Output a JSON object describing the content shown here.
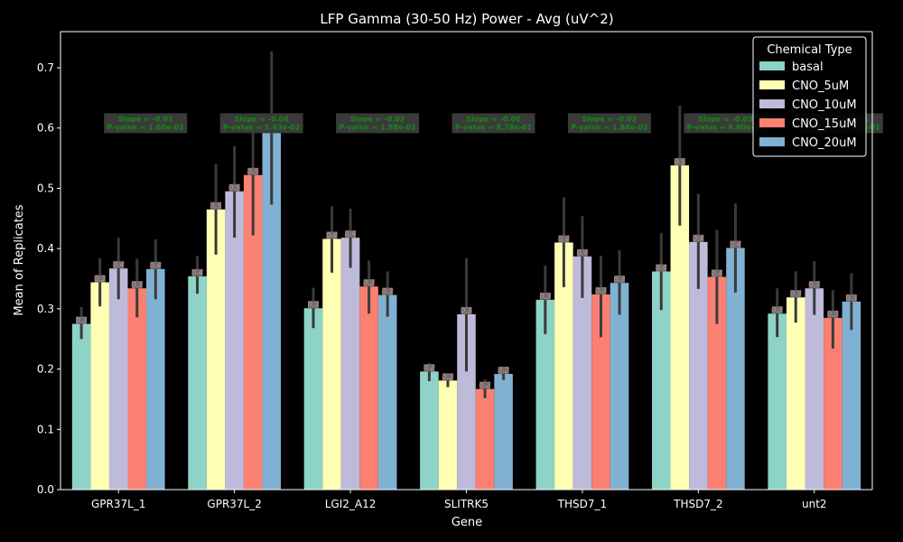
{
  "colors": {
    "background": "#000000",
    "axis": "#ffffff",
    "errorbar": "#3a3a3a",
    "stat_box": "#3a3a3a",
    "stat_text": "#138a13",
    "bar_label_bg": "#6e6e6e",
    "bar_label_text": "#d48a8a",
    "legend_bg": "#000000",
    "legend_border": "#ffffff"
  },
  "chart_data": {
    "type": "bar",
    "title": "LFP Gamma (30-50 Hz) Power - Avg (uV^2)",
    "xlabel": "Gene",
    "ylabel": "Mean of Replicates",
    "ylim": [
      0,
      0.76
    ],
    "yticks": [
      0.0,
      0.1,
      0.2,
      0.3,
      0.4,
      0.5,
      0.6,
      0.7
    ],
    "ytick_labels": [
      "0.0",
      "0.1",
      "0.2",
      "0.3",
      "0.4",
      "0.5",
      "0.6",
      "0.7"
    ],
    "grid": false,
    "legend_placement": "top-right",
    "legend_title": "Chemical Type",
    "categories": [
      "GPR37L_1",
      "GPR37L_2",
      "LGI2_A12",
      "SLITRK5",
      "THSD7_1",
      "THSD7_2",
      "unt2"
    ],
    "series": [
      {
        "name": "basal",
        "color": "#8dd3c7",
        "values": [
          0.275,
          0.354,
          0.301,
          0.196,
          0.315,
          0.362,
          0.292
        ],
        "err_low": [
          0.25,
          0.325,
          0.268,
          0.18,
          0.258,
          0.298,
          0.253
        ],
        "err_high": [
          0.303,
          0.388,
          0.335,
          0.21,
          0.372,
          0.426,
          0.334
        ],
        "labels": [
          "0.3",
          "0.4",
          "0.3",
          "0.2",
          "0.3",
          "0.4",
          "0.3"
        ]
      },
      {
        "name": "CNO_5uM",
        "color": "#ffffb3",
        "values": [
          0.344,
          0.465,
          0.416,
          0.181,
          0.41,
          0.538,
          0.319
        ],
        "err_low": [
          0.304,
          0.39,
          0.36,
          0.17,
          0.336,
          0.438,
          0.277
        ],
        "err_high": [
          0.384,
          0.54,
          0.47,
          0.19,
          0.485,
          0.637,
          0.362
        ],
        "labels": [
          "0.3",
          "0.5",
          "0.4",
          "0.2",
          "0.4",
          "0.5",
          "0.3"
        ]
      },
      {
        "name": "CNO_10uM",
        "color": "#bebada",
        "values": [
          0.367,
          0.495,
          0.418,
          0.291,
          0.387,
          0.411,
          0.334
        ],
        "err_low": [
          0.316,
          0.418,
          0.368,
          0.196,
          0.318,
          0.333,
          0.29
        ],
        "err_high": [
          0.418,
          0.57,
          0.466,
          0.384,
          0.454,
          0.491,
          0.379
        ],
        "labels": [
          "0.4",
          "0.5",
          "0.4",
          "0.3",
          "0.4",
          "0.4",
          "0.3"
        ]
      },
      {
        "name": "CNO_15uM",
        "color": "#fb8072",
        "values": [
          0.334,
          0.522,
          0.337,
          0.167,
          0.324,
          0.353,
          0.285
        ],
        "err_low": [
          0.286,
          0.422,
          0.292,
          0.152,
          0.253,
          0.275,
          0.234
        ],
        "err_high": [
          0.383,
          0.623,
          0.38,
          0.183,
          0.388,
          0.431,
          0.331
        ],
        "labels": [
          "0.3",
          "0.5",
          "0.3",
          "0.2",
          "0.3",
          "0.4",
          "0.3"
        ]
      },
      {
        "name": "CNO_20uM",
        "color": "#80b1d3",
        "values": [
          0.366,
          0.6,
          0.323,
          0.192,
          0.343,
          0.401,
          0.312
        ],
        "err_low": [
          0.316,
          0.473,
          0.287,
          0.182,
          0.29,
          0.327,
          0.265
        ],
        "err_high": [
          0.415,
          0.727,
          0.362,
          0.203,
          0.397,
          0.475,
          0.359
        ],
        "labels": [
          "0.4",
          "0.6",
          "0.3",
          "0.2",
          "0.3",
          "0.4",
          "0.3"
        ]
      }
    ],
    "annotations": [
      {
        "category": "GPR37L_1",
        "slope": "Slope = -0.01",
        "pvalue": "P-value = 1.60e-01"
      },
      {
        "category": "GPR37L_2",
        "slope": "Slope = -0.04",
        "pvalue": "P-value = 5.43e-02"
      },
      {
        "category": "LGI2_A12",
        "slope": "Slope = -0.02",
        "pvalue": "P-value = 1.98e-01"
      },
      {
        "category": "SLITRK5",
        "slope": "Slope = -0.00",
        "pvalue": "P-value = 8.78e-01"
      },
      {
        "category": "THSD7_1",
        "slope": "Slope = -0.02",
        "pvalue": "P-value = 1.84e-02"
      },
      {
        "category": "THSD7_2",
        "slope": "Slope = -0.03",
        "pvalue": "P-value = 6.80e-02"
      },
      {
        "category": "unt2",
        "slope": "Slope = -0.01",
        "pvalue": "P-value = 2.33e-01"
      }
    ],
    "annotation_y": 0.62
  }
}
